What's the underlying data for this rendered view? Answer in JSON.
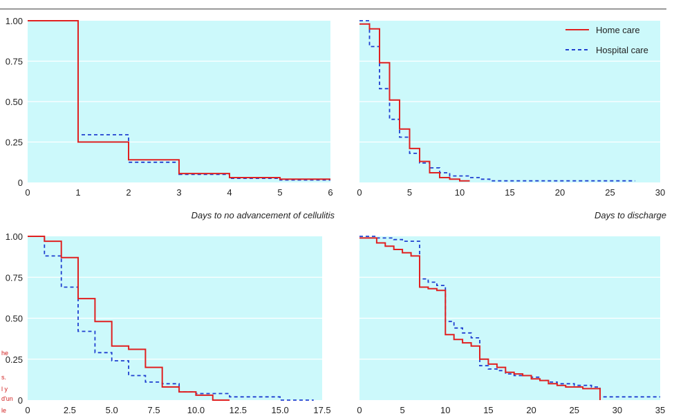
{
  "colors": {
    "panel_bg": "#ccf9fb",
    "grid": "#ffffff",
    "home": "#e02020",
    "hospital": "#1f3fd0",
    "rule": "#333333"
  },
  "legend": {
    "position": "top-right",
    "items": [
      {
        "label": "Home care",
        "style": "solid"
      },
      {
        "label": "Hospital care",
        "style": "dashed"
      }
    ]
  },
  "side_text": [
    "he",
    "s.",
    "l y",
    "d'un",
    "le"
  ],
  "chart_data": [
    {
      "type": "line",
      "step": true,
      "xlabel": "Days to no advancement of cellulitis",
      "xlim": [
        0,
        6
      ],
      "ylim": [
        0,
        1
      ],
      "xticks": [
        "0",
        "1",
        "2",
        "3",
        "4",
        "5",
        "6"
      ],
      "yticks": [
        "0",
        "0.25",
        "0.50",
        "0.75",
        "1.00"
      ],
      "series": [
        {
          "name": "Home care",
          "x": [
            0,
            1,
            2,
            3,
            4,
            5,
            6
          ],
          "y": [
            1.0,
            0.25,
            0.14,
            0.055,
            0.03,
            0.02,
            0.02
          ]
        },
        {
          "name": "Hospital care",
          "x": [
            0,
            1,
            2,
            3,
            4,
            5,
            6
          ],
          "y": [
            1.0,
            0.295,
            0.125,
            0.05,
            0.025,
            0.015,
            0.015
          ]
        }
      ]
    },
    {
      "type": "line",
      "step": true,
      "xlabel": "Days to discharge",
      "xlim": [
        0,
        30
      ],
      "ylim": [
        0,
        1
      ],
      "xticks": [
        "0",
        "5",
        "10",
        "15",
        "20",
        "25",
        "30"
      ],
      "yticks": [],
      "series": [
        {
          "name": "Home care",
          "x": [
            0,
            1,
            2,
            3,
            4,
            5,
            6,
            7,
            8,
            9,
            10,
            11
          ],
          "y": [
            0.98,
            0.95,
            0.74,
            0.51,
            0.33,
            0.21,
            0.13,
            0.06,
            0.03,
            0.02,
            0.01,
            0.01
          ]
        },
        {
          "name": "Hospital care",
          "x": [
            0,
            1,
            2,
            3,
            4,
            5,
            6,
            7,
            8,
            9,
            10,
            11,
            12,
            13,
            27.5
          ],
          "y": [
            1.0,
            0.84,
            0.58,
            0.39,
            0.28,
            0.18,
            0.12,
            0.09,
            0.06,
            0.04,
            0.04,
            0.03,
            0.02,
            0.01,
            0.01
          ]
        }
      ]
    },
    {
      "type": "line",
      "step": true,
      "xlabel": "",
      "xlim": [
        0,
        17.5
      ],
      "ylim": [
        0,
        1
      ],
      "xticks": [
        "0",
        "2.5",
        "5.0",
        "7.5",
        "10.0",
        "12.5",
        "15.0",
        "17.5"
      ],
      "yticks": [
        "0",
        "0.25",
        "0.50",
        "0.75",
        "1.00"
      ],
      "series": [
        {
          "name": "Home care",
          "x": [
            0,
            1,
            2,
            3,
            4,
            5,
            6,
            7,
            8,
            9,
            10,
            11,
            12
          ],
          "y": [
            1.0,
            0.97,
            0.87,
            0.62,
            0.48,
            0.33,
            0.31,
            0.2,
            0.08,
            0.05,
            0.03,
            0.0,
            0.0
          ]
        },
        {
          "name": "Hospital care",
          "x": [
            0,
            1,
            2,
            3,
            4,
            5,
            6,
            7,
            8,
            9,
            10,
            11,
            12,
            13,
            14,
            15,
            16,
            17
          ],
          "y": [
            1.0,
            0.88,
            0.69,
            0.42,
            0.29,
            0.24,
            0.15,
            0.11,
            0.1,
            0.05,
            0.04,
            0.04,
            0.02,
            0.02,
            0.02,
            0.0,
            0.0,
            0.0
          ]
        }
      ]
    },
    {
      "type": "line",
      "step": true,
      "xlabel": "",
      "xlim": [
        0,
        35
      ],
      "ylim": [
        0,
        1
      ],
      "xticks": [
        "0",
        "5",
        "10",
        "15",
        "20",
        "25",
        "30",
        "35"
      ],
      "yticks": [],
      "series": [
        {
          "name": "Home care",
          "x": [
            0,
            2,
            3,
            4,
            5,
            6,
            7,
            8,
            9,
            10,
            11,
            12,
            13,
            14,
            15,
            16,
            17,
            18,
            19,
            20,
            21,
            22,
            23,
            24,
            25,
            26,
            27,
            28
          ],
          "y": [
            0.99,
            0.96,
            0.94,
            0.92,
            0.9,
            0.88,
            0.69,
            0.68,
            0.67,
            0.4,
            0.37,
            0.35,
            0.33,
            0.25,
            0.22,
            0.2,
            0.17,
            0.16,
            0.15,
            0.13,
            0.12,
            0.1,
            0.09,
            0.08,
            0.08,
            0.07,
            0.07,
            0.0
          ]
        },
        {
          "name": "Hospital care",
          "x": [
            0,
            2,
            3,
            4,
            5,
            6,
            7,
            8,
            9,
            10,
            11,
            12,
            13,
            14,
            15,
            16,
            17,
            18,
            19,
            20,
            21,
            22,
            23,
            24,
            25,
            26,
            27,
            28,
            35
          ],
          "y": [
            1.0,
            0.99,
            0.99,
            0.98,
            0.97,
            0.97,
            0.74,
            0.72,
            0.7,
            0.48,
            0.44,
            0.41,
            0.38,
            0.21,
            0.19,
            0.18,
            0.16,
            0.15,
            0.15,
            0.14,
            0.12,
            0.11,
            0.1,
            0.1,
            0.09,
            0.09,
            0.08,
            0.02,
            0.02
          ]
        }
      ]
    }
  ]
}
